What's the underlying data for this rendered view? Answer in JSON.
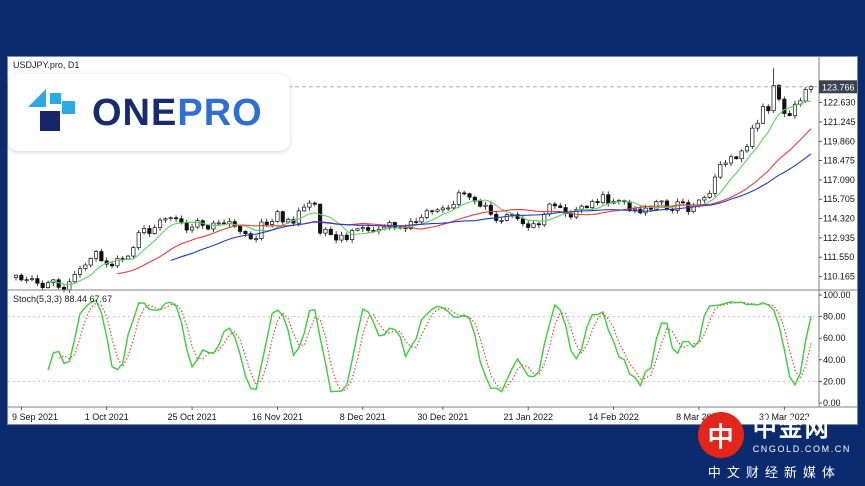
{
  "window": {
    "frame_color": "#0b2b6e"
  },
  "chart": {
    "symbol_label": "USDJPY.pro, D1"
  },
  "chart_data": {
    "type": "candlestick",
    "symbol": "USDJPY.pro",
    "timeframe": "D1",
    "first_open": 110.1,
    "closes": [
      110.26,
      109.92,
      109.94,
      110.02,
      109.68,
      109.37,
      109.72,
      109.93,
      109.39,
      109.22,
      109.79,
      110.32,
      110.73,
      110.99,
      111.47,
      111.96,
      111.29,
      111.05,
      110.93,
      111.46,
      111.42,
      111.63,
      112.24,
      113.31,
      113.61,
      113.25,
      113.67,
      114.22,
      114.31,
      114.38,
      114.31,
      113.99,
      113.5,
      113.71,
      114.17,
      113.83,
      113.57,
      114.0,
      114.01,
      113.96,
      114.11,
      113.76,
      113.4,
      113.24,
      112.87,
      112.88,
      114.07,
      113.89,
      114.12,
      114.82,
      114.08,
      114.25,
      113.99,
      114.87,
      115.14,
      115.43,
      115.35,
      113.28,
      113.55,
      113.17,
      112.78,
      113.13,
      112.81,
      113.47,
      113.59,
      113.68,
      113.47,
      113.44,
      113.55,
      113.71,
      114.04,
      113.67,
      113.7,
      113.6,
      114.1,
      114.08,
      114.4,
      114.88,
      114.84,
      114.95,
      115.08,
      115.08,
      115.34,
      116.16,
      116.1,
      115.85,
      115.56,
      115.2,
      115.28,
      114.63,
      114.18,
      114.19,
      114.6,
      114.61,
      114.31,
      113.95,
      113.68,
      113.95,
      113.87,
      114.64,
      115.36,
      115.23,
      115.11,
      114.68,
      114.43,
      114.96,
      115.21,
      115.1,
      115.54,
      115.46,
      116.03,
      115.42,
      115.55,
      115.62,
      115.52,
      114.92,
      115.0,
      114.73,
      115.07,
      114.99,
      115.54,
      115.58,
      115.0,
      114.9,
      115.52,
      115.47,
      114.82,
      115.3,
      115.65,
      115.83,
      116.13,
      117.29,
      118.2,
      118.3,
      118.75,
      118.61,
      119.17,
      119.48,
      120.8,
      121.15,
      122.35,
      122.05,
      123.86,
      122.88,
      121.85,
      121.7,
      122.52,
      122.76,
      123.58,
      123.77
    ],
    "spike": {
      "index": 142,
      "high": 125.1
    },
    "price_axis": {
      "range": [
        109.2,
        125.9
      ],
      "ticks": [
        "122.630",
        "121.245",
        "119.860",
        "118.475",
        "117.090",
        "115.705",
        "114.320",
        "112.935",
        "111.550",
        "110.165"
      ],
      "last_price": "123.766",
      "badge_color": "#3a4250"
    },
    "time_axis": {
      "ticks": [
        {
          "label": "9 Sep 2021",
          "index": 1
        },
        {
          "label": "1 Oct 2021",
          "index": 17
        },
        {
          "label": "25 Oct 2021",
          "index": 33
        },
        {
          "label": "16 Nov 2021",
          "index": 49
        },
        {
          "label": "8 Dec 2021",
          "index": 65
        },
        {
          "label": "30 Dec 2021",
          "index": 80
        },
        {
          "label": "21 Jan 2022",
          "index": 96
        },
        {
          "label": "14 Feb 2022",
          "index": 112
        },
        {
          "label": "8 Mar 2022",
          "index": 128
        },
        {
          "label": "30 Mar 2022",
          "index": 144
        }
      ]
    },
    "overlays": [
      {
        "name": "fast-ma",
        "period": 7,
        "color": "#5dd05d"
      },
      {
        "name": "mid-ma",
        "period": 20,
        "color": "#e23d3d"
      },
      {
        "name": "slow-ma",
        "period": 30,
        "color": "#2238c8"
      }
    ],
    "indicator": {
      "name": "Stochastic",
      "label": "Stoch(5,3,3) 88.44 67.67",
      "params": [
        5,
        3,
        3
      ],
      "last_main": 88.44,
      "last_signal": 67.67,
      "main_color": "#3ccc3c",
      "signal_color": "#e04545",
      "levels": [
        80,
        20
      ],
      "ticks": [
        "100.00",
        "80.00",
        "60.00",
        "40.00",
        "20.00",
        "0.00"
      ],
      "range": [
        0,
        100
      ]
    }
  },
  "logo_onepro": {
    "one": "ONE",
    "pro": "PRO",
    "one_color": "#182c6d",
    "pro_color": "#2e6fd0",
    "icon_light": "#2ba9e0",
    "icon_dark": "#15266b"
  },
  "logo_cngold": {
    "glyph": "中",
    "name": "中金网",
    "domain": "CNGOLD.COM.CN",
    "tagline": "中文财经新媒体",
    "circle_color": "#e2261c"
  }
}
